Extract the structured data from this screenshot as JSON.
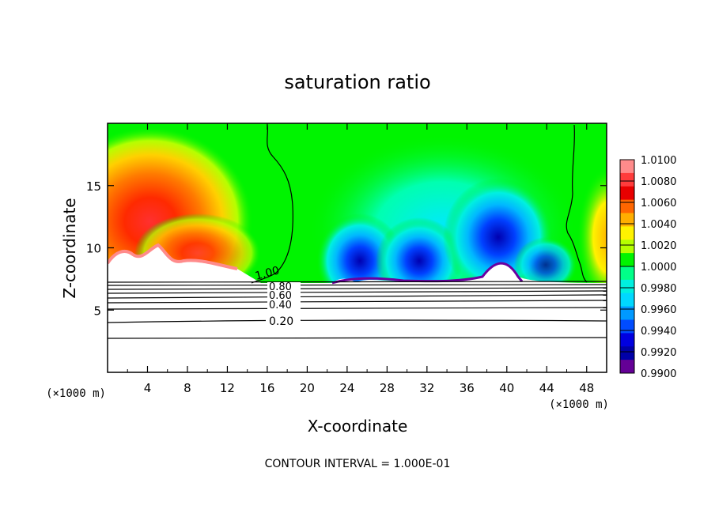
{
  "chart_data": {
    "type": "heatmap",
    "title": "saturation ratio",
    "xlabel": "X-coordinate",
    "ylabel": "Z-coordinate",
    "x_units": "(×1000 m)",
    "y_units": "(×1000 m)",
    "xlim": [
      0,
      50
    ],
    "ylim": [
      0,
      20
    ],
    "x_ticks": [
      4,
      8,
      12,
      16,
      20,
      24,
      28,
      32,
      36,
      40,
      44,
      48
    ],
    "x_tick_labels": [
      "4",
      "8",
      "12",
      "16",
      "20",
      "24",
      "28",
      "32",
      "36",
      "40",
      "44",
      "48"
    ],
    "y_ticks": [
      5,
      10,
      15
    ],
    "y_tick_labels": [
      "5",
      "10",
      "15"
    ],
    "colorbar": {
      "min": 0.99,
      "max": 1.01,
      "labels": [
        "1.0100",
        "1.0080",
        "1.0060",
        "1.0040",
        "1.0020",
        "1.0000",
        "0.9980",
        "0.9960",
        "0.9940",
        "0.9920",
        "0.9900"
      ],
      "colors": [
        "#ff8b8b",
        "#ff3c3c",
        "#e80000",
        "#ff6600",
        "#ffae00",
        "#fff200",
        "#b5ff00",
        "#00f400",
        "#00ff88",
        "#00f0e0",
        "#00d8ff",
        "#0099ff",
        "#004cff",
        "#0000e0",
        "#0000a8",
        "#640096"
      ]
    },
    "contour_labels": [
      "1.00",
      "0.80",
      "0.60",
      "0.40",
      "0.20"
    ],
    "contour_interval_text": "CONTOUR INTERVAL = 1.000E-01",
    "grid": false
  }
}
